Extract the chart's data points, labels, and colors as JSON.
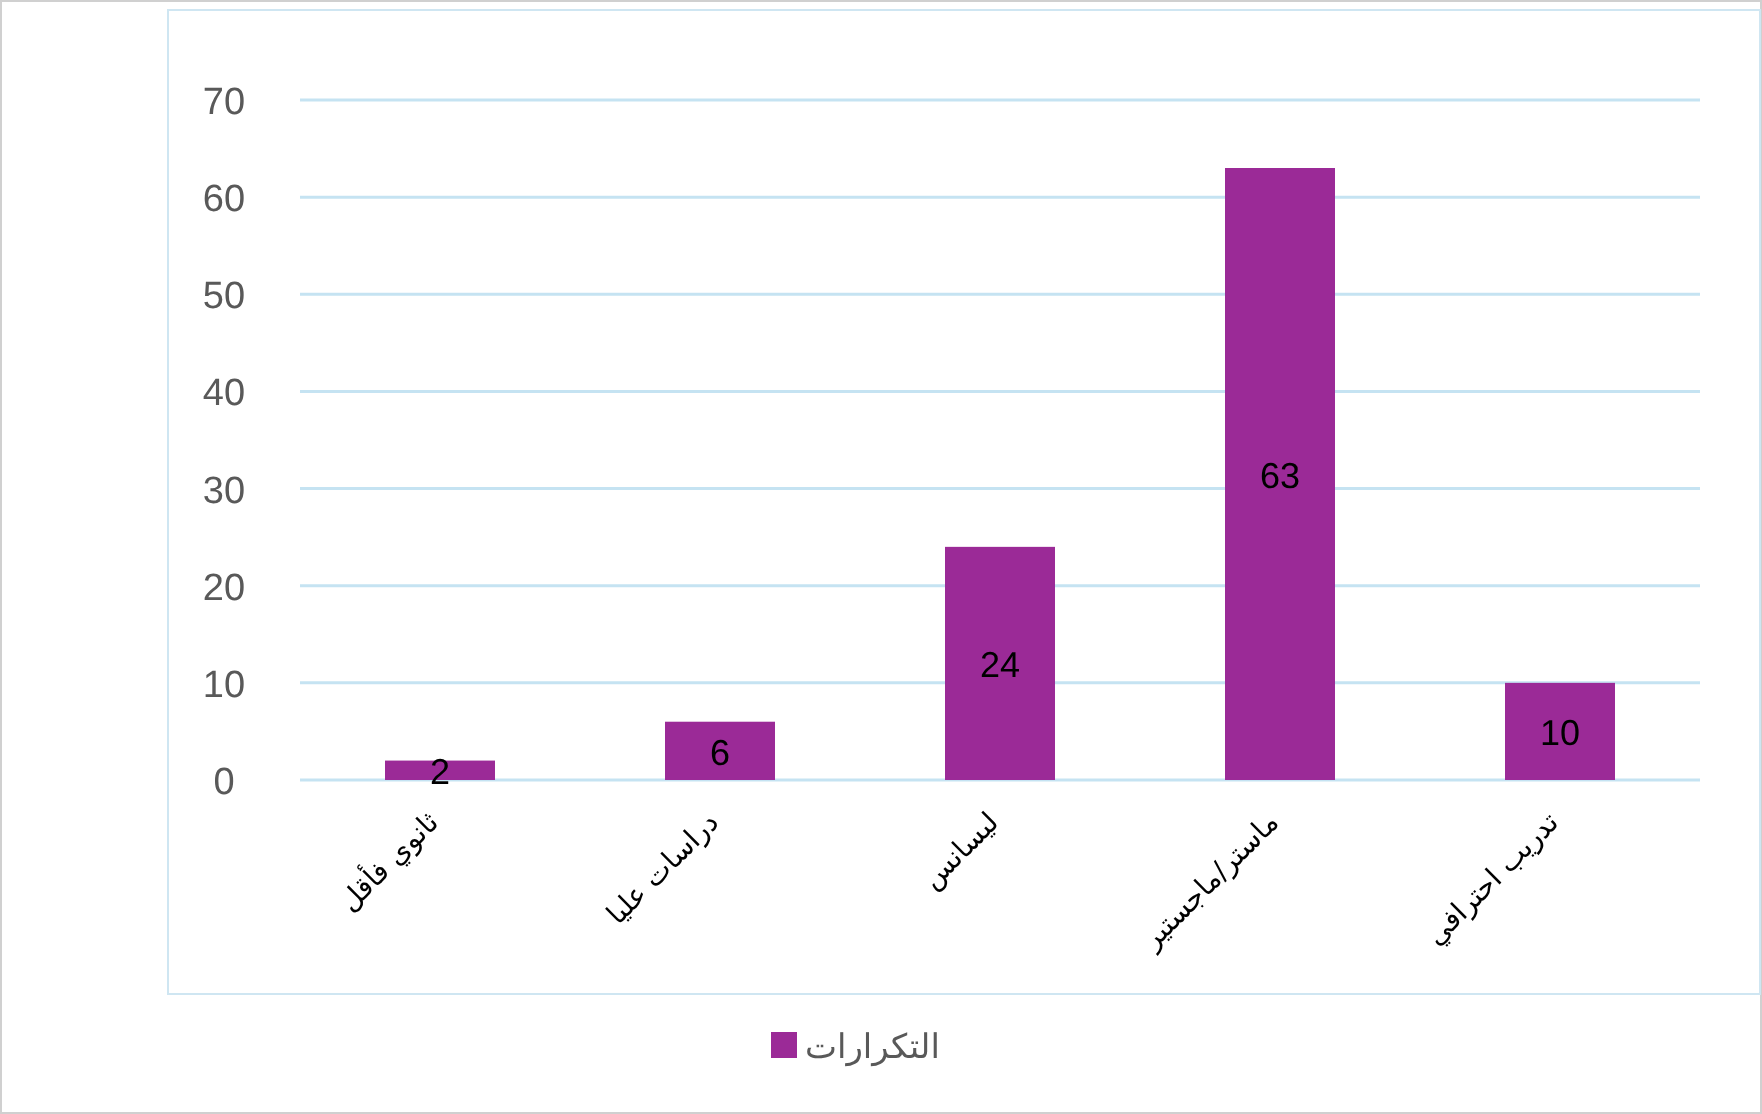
{
  "chart_data": {
    "type": "bar",
    "categories": [
      "ثانوي فأقل",
      "دراسات عليا",
      "ليسانس",
      "ماستر/ماجستير",
      "تدريب احترافي"
    ],
    "series": [
      {
        "name": "التكرارات",
        "color": "#9b2a97",
        "values": [
          2,
          6,
          24,
          63,
          10
        ]
      }
    ],
    "ylim": [
      0,
      70
    ],
    "yticks": [
      0,
      10,
      20,
      30,
      40,
      50,
      60,
      70
    ],
    "grid": "y",
    "legend": "bottom",
    "data_labels": true
  }
}
